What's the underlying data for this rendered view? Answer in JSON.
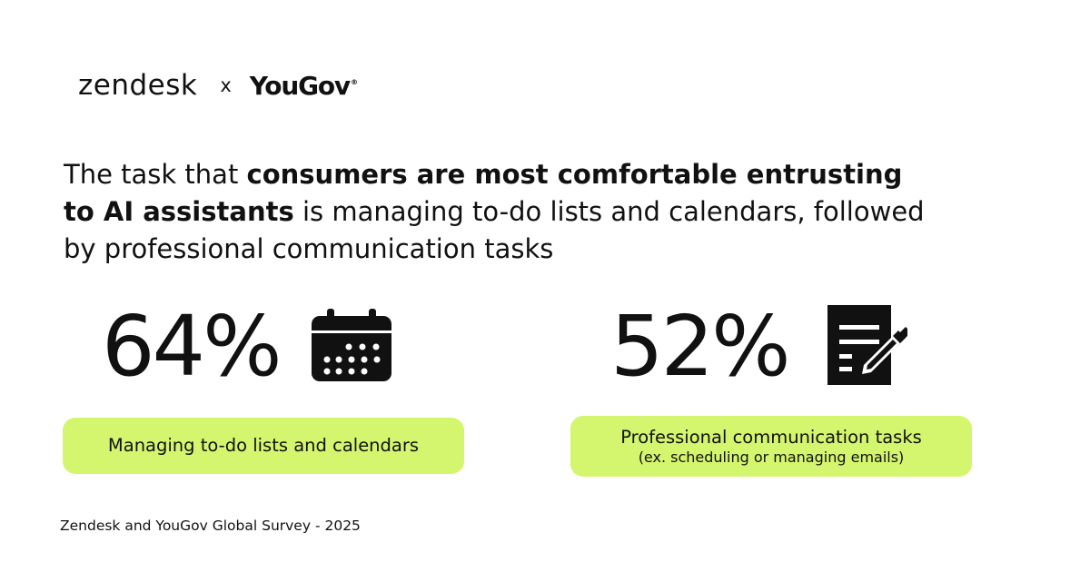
{
  "logos": {
    "brand_1": "zendesk",
    "separator": "x",
    "brand_2": "YouGov",
    "brand_2_mark": "®"
  },
  "headline": {
    "lead": "The task that",
    "bold": "consumers are most comfortable entrusting to AI assistants",
    "rest": "is managing to-do lists and calendars, followed by professional communication tasks"
  },
  "stats": [
    {
      "value": "64%",
      "icon": "calendar-icon",
      "label": "Managing to-do lists and calendars",
      "sub": ""
    },
    {
      "value": "52%",
      "icon": "document-edit-icon",
      "label": "Professional communication tasks",
      "sub": "(ex.  scheduling or managing emails)"
    }
  ],
  "footer": {
    "source": "Zendesk and YouGov Global Survey - 2025"
  },
  "colors": {
    "background": "#ffffff",
    "text": "#111111",
    "accent": "#d4f56e"
  }
}
